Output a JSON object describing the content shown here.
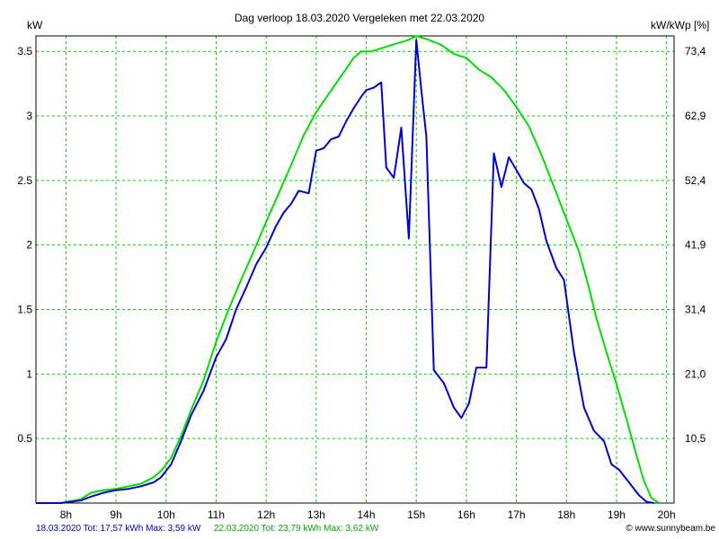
{
  "chart_data": {
    "type": "line",
    "title": "Dag  verloop 18.03.2020   Vergeleken met 22.03.2020",
    "ylabel_left": "kW",
    "ylabel_right": "kW/kWp [%]",
    "ylim": [
      0,
      3.62
    ],
    "xlim": [
      7.4,
      20.15
    ],
    "grid": true,
    "x_ticks": [
      8,
      9,
      10,
      11,
      12,
      13,
      14,
      15,
      16,
      17,
      18,
      19,
      20
    ],
    "x_tick_labels": [
      "8h",
      "9h",
      "10h",
      "11h",
      "12h",
      "13h",
      "14h",
      "15h",
      "16h",
      "17h",
      "18h",
      "19h",
      "20h"
    ],
    "y_ticks_left": [
      0.5,
      1,
      1.5,
      2,
      2.5,
      3,
      3.5
    ],
    "y_tick_labels_left": [
      "0.5",
      "1",
      "1.5",
      "2",
      "2.5",
      "3",
      "3.5"
    ],
    "y_ticks_right_kw": [
      0.73,
      1.47,
      2.2,
      2.93,
      3.66
    ],
    "y_tick_labels_right": [
      "10,5",
      "21,0",
      "31,4",
      "41,9",
      "52,4",
      "62,9",
      "73,4"
    ],
    "right_tick_positions_kw": [
      0.5,
      1.0,
      1.5,
      2.0,
      2.5,
      3.0,
      3.5
    ],
    "series": [
      {
        "name": "18.03.2020",
        "color": "#0000cc",
        "x": [
          7.4,
          7.9,
          8.3,
          8.5,
          8.75,
          9.0,
          9.25,
          9.5,
          9.75,
          9.9,
          10.1,
          10.3,
          10.5,
          10.75,
          11.0,
          11.2,
          11.4,
          11.6,
          11.8,
          12.0,
          12.2,
          12.35,
          12.5,
          12.65,
          12.85,
          13.0,
          13.15,
          13.3,
          13.45,
          13.6,
          13.75,
          13.9,
          14.0,
          14.15,
          14.3,
          14.4,
          14.55,
          14.7,
          14.85,
          15.0,
          15.1,
          15.2,
          15.35,
          15.55,
          15.75,
          15.9,
          16.05,
          16.2,
          16.4,
          16.55,
          16.7,
          16.85,
          17.0,
          17.15,
          17.3,
          17.45,
          17.6,
          17.8,
          17.95,
          18.15,
          18.35,
          18.55,
          18.75,
          18.9,
          19.05,
          19.25,
          19.45,
          19.6,
          19.75
        ],
        "values": [
          0.0,
          0.0,
          0.02,
          0.05,
          0.08,
          0.1,
          0.11,
          0.13,
          0.16,
          0.2,
          0.3,
          0.48,
          0.68,
          0.87,
          1.13,
          1.27,
          1.5,
          1.67,
          1.85,
          1.98,
          2.15,
          2.25,
          2.32,
          2.42,
          2.4,
          2.73,
          2.75,
          2.82,
          2.84,
          2.96,
          3.06,
          3.15,
          3.2,
          3.22,
          3.26,
          2.6,
          2.52,
          2.91,
          2.05,
          3.59,
          3.2,
          2.84,
          1.03,
          0.93,
          0.74,
          0.66,
          0.77,
          1.05,
          1.05,
          2.71,
          2.45,
          2.68,
          2.58,
          2.48,
          2.43,
          2.28,
          2.03,
          1.82,
          1.73,
          1.17,
          0.74,
          0.56,
          0.48,
          0.3,
          0.26,
          0.16,
          0.06,
          0.01,
          0.0
        ]
      },
      {
        "name": "22.03.2020",
        "color": "#00dd00",
        "x": [
          7.4,
          7.9,
          8.3,
          8.5,
          8.75,
          9.0,
          9.25,
          9.5,
          9.75,
          9.9,
          10.1,
          10.3,
          10.5,
          10.75,
          11.0,
          11.25,
          11.5,
          11.75,
          12.0,
          12.25,
          12.5,
          12.75,
          13.0,
          13.25,
          13.5,
          13.75,
          13.9,
          14.1,
          14.35,
          14.6,
          14.85,
          15.0,
          15.25,
          15.5,
          15.75,
          16.0,
          16.25,
          16.5,
          16.75,
          17.0,
          17.25,
          17.5,
          17.75,
          18.0,
          18.25,
          18.45,
          18.6,
          18.8,
          19.0,
          19.2,
          19.4,
          19.55,
          19.7,
          19.85
        ],
        "values": [
          0.0,
          0.0,
          0.03,
          0.08,
          0.1,
          0.11,
          0.13,
          0.15,
          0.2,
          0.25,
          0.35,
          0.52,
          0.72,
          0.95,
          1.25,
          1.5,
          1.73,
          1.95,
          2.18,
          2.4,
          2.62,
          2.85,
          3.03,
          3.17,
          3.31,
          3.45,
          3.5,
          3.5,
          3.53,
          3.56,
          3.59,
          3.62,
          3.59,
          3.55,
          3.48,
          3.45,
          3.36,
          3.3,
          3.2,
          3.07,
          2.92,
          2.7,
          2.45,
          2.2,
          1.95,
          1.67,
          1.43,
          1.17,
          0.92,
          0.65,
          0.37,
          0.17,
          0.04,
          0.0
        ]
      }
    ]
  },
  "footer": {
    "left_blue": "18.03.2020 Tot: 17,57 kWh Max: 3,59 kW",
    "left_green": "22.03.2020 Tot: 23,79 kWh Max: 3,62 kW",
    "credit": "www.sunnybeam.be"
  },
  "colors": {
    "grid": "#00cc00",
    "axis": "#000000",
    "background": "#ffffff"
  }
}
